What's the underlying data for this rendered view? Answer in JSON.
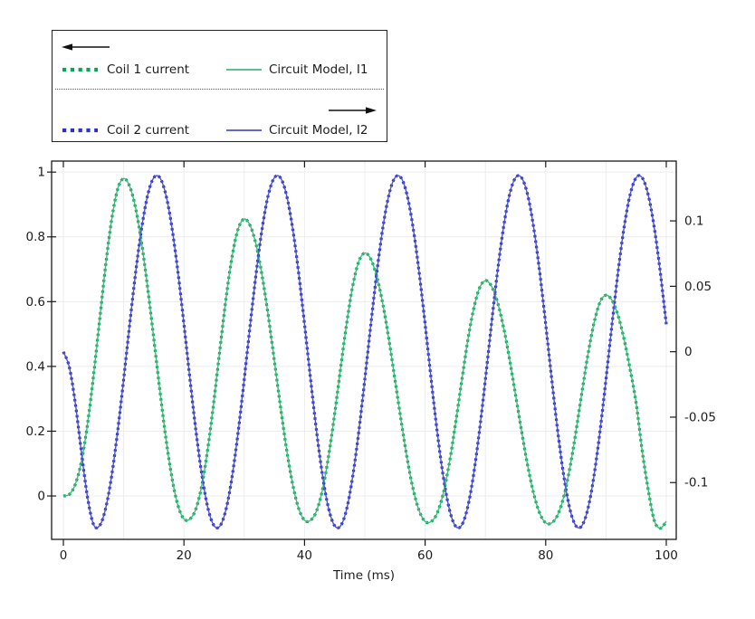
{
  "legend": {
    "top_arrow_direction": "left",
    "bottom_arrow_direction": "right",
    "separator_style": "dotted",
    "entries": [
      {
        "label": "Coil 1 current",
        "style": "dotted",
        "color": "#00a857"
      },
      {
        "label": "Circuit Model, I1",
        "style": "solid",
        "color": "#47b87c"
      },
      {
        "label": "Coil 2 current",
        "style": "dotted",
        "color": "#2b2fd2"
      },
      {
        "label": "Circuit Model, I2",
        "style": "solid",
        "color": "#4b55c8"
      }
    ]
  },
  "chart_data": {
    "type": "line",
    "title": "",
    "xlabel": "Time (ms)",
    "x_range": [
      0,
      100
    ],
    "x_ticks": [
      0,
      20,
      40,
      60,
      80,
      100
    ],
    "x_tick_labels": [
      "0",
      "20",
      "40",
      "60",
      "80",
      "100"
    ],
    "x_grid_step": 10,
    "grid": true,
    "grid_color": "#ececec",
    "frame_color": "#1a1a1a",
    "left_axis": {
      "range": [
        -0.134,
        1.034
      ],
      "ticks": [
        1,
        0.8,
        0.6,
        0.4,
        0.2,
        0
      ],
      "tick_labels": [
        "1",
        "0.8",
        "0.6",
        "0.4",
        "0.2",
        "0"
      ]
    },
    "right_axis": {
      "range": [
        -0.1434,
        0.1457
      ],
      "ticks": [
        0.1,
        0.05,
        0,
        -0.05,
        -0.1
      ],
      "tick_labels": [
        "0.1",
        "0.05",
        "0",
        "-0.05",
        "-0.1"
      ]
    },
    "x": {
      "start": 0,
      "step": 1,
      "count": 101
    },
    "I1_values": [
      0.0,
      0.005,
      0.037,
      0.107,
      0.221,
      0.371,
      0.541,
      0.71,
      0.852,
      0.947,
      0.98,
      0.956,
      0.887,
      0.778,
      0.64,
      0.485,
      0.327,
      0.179,
      0.057,
      -0.029,
      -0.071,
      -0.071,
      -0.039,
      0.036,
      0.152,
      0.298,
      0.458,
      0.613,
      0.741,
      0.825,
      0.855,
      0.834,
      0.773,
      0.676,
      0.554,
      0.417,
      0.277,
      0.147,
      0.039,
      -0.037,
      -0.075,
      -0.075,
      -0.046,
      0.021,
      0.124,
      0.254,
      0.397,
      0.534,
      0.649,
      0.724,
      0.75,
      0.731,
      0.676,
      0.591,
      0.482,
      0.359,
      0.235,
      0.118,
      0.022,
      -0.045,
      -0.079,
      -0.079,
      -0.053,
      0.007,
      0.1,
      0.218,
      0.346,
      0.471,
      0.573,
      0.641,
      0.665,
      0.648,
      0.599,
      0.521,
      0.423,
      0.312,
      0.2,
      0.095,
      0.008,
      -0.053,
      -0.083,
      -0.083,
      -0.058,
      -0.002,
      0.086,
      0.197,
      0.319,
      0.436,
      0.533,
      0.598,
      0.62,
      0.604,
      0.557,
      0.484,
      0.391,
      0.287,
      0.14,
      0.02,
      -0.075,
      -0.1,
      -0.078
    ],
    "I2_values": [
      0.0,
      -0.012,
      -0.04,
      -0.077,
      -0.111,
      -0.132,
      -0.133,
      -0.12,
      -0.095,
      -0.061,
      -0.021,
      0.021,
      0.061,
      0.095,
      0.12,
      0.133,
      0.133,
      0.12,
      0.095,
      0.061,
      0.021,
      -0.021,
      -0.061,
      -0.095,
      -0.12,
      -0.133,
      -0.133,
      -0.12,
      -0.095,
      -0.061,
      -0.021,
      0.021,
      0.061,
      0.095,
      0.12,
      0.133,
      0.133,
      0.12,
      0.095,
      0.061,
      0.021,
      -0.021,
      -0.061,
      -0.095,
      -0.12,
      -0.133,
      -0.133,
      -0.12,
      -0.095,
      -0.061,
      -0.021,
      0.021,
      0.061,
      0.095,
      0.12,
      0.133,
      0.133,
      0.12,
      0.095,
      0.061,
      0.021,
      -0.021,
      -0.061,
      -0.095,
      -0.12,
      -0.133,
      -0.133,
      -0.12,
      -0.095,
      -0.061,
      -0.021,
      0.021,
      0.061,
      0.095,
      0.12,
      0.133,
      0.133,
      0.12,
      0.095,
      0.061,
      0.021,
      -0.021,
      -0.061,
      -0.095,
      -0.12,
      -0.133,
      -0.133,
      -0.12,
      -0.095,
      -0.061,
      -0.021,
      0.021,
      0.061,
      0.095,
      0.12,
      0.133,
      0.133,
      0.12,
      0.095,
      0.061,
      0.021
    ],
    "series": [
      {
        "name": "Coil 1 current",
        "axis": "left",
        "style": "dotted",
        "color": "#00a857",
        "width": 3.2,
        "values_key": "I1_values"
      },
      {
        "name": "Circuit Model, I1",
        "axis": "left",
        "style": "solid",
        "color": "#47b87c",
        "width": 1.4,
        "values_key": "I1_values"
      },
      {
        "name": "Coil 2 current",
        "axis": "right",
        "style": "dotted",
        "color": "#2b2fd2",
        "width": 3.2,
        "values_key": "I2_values"
      },
      {
        "name": "Circuit Model, I2",
        "axis": "right",
        "style": "solid",
        "color": "#4b55c8",
        "width": 1.4,
        "values_key": "I2_values"
      }
    ]
  }
}
